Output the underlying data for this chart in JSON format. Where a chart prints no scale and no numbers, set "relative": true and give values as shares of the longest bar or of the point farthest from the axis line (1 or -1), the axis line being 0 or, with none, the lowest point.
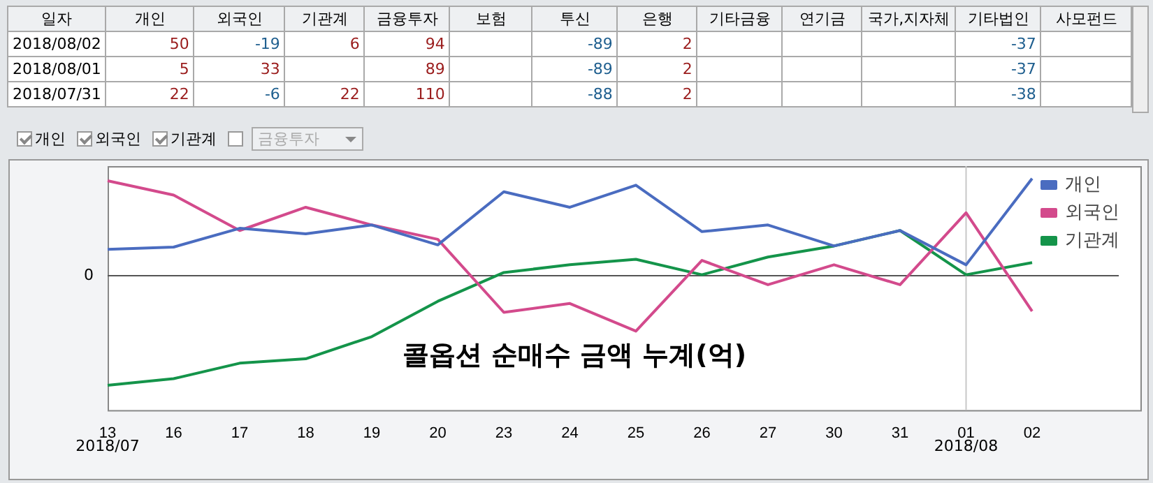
{
  "chart_data": [
    {
      "type": "other",
      "categories": [
        "일자",
        "개인",
        "외국인",
        "기관계",
        "금융투자",
        "보험",
        "투신",
        "은행",
        "기타금융",
        "연기금",
        "국가,지자체",
        "기타법인",
        "사모펀드"
      ],
      "cell_labels": [
        [
          "2018/08/02",
          "50",
          "-19",
          "6",
          "94",
          null,
          "-89",
          "2",
          null,
          null,
          null,
          "-37",
          null
        ],
        [
          "2018/08/01",
          "5",
          "33",
          null,
          "89",
          null,
          "-89",
          "2",
          null,
          null,
          null,
          "-37",
          null
        ],
        [
          "2018/07/31",
          "22",
          "-6",
          "22",
          "110",
          null,
          "-88",
          "2",
          null,
          null,
          null,
          "-38",
          null
        ]
      ],
      "annotations": [
        "개인",
        "외국인",
        "기관계",
        "금융투자"
      ]
    },
    {
      "type": "line",
      "title": "콜옵션 순매수 금액 누계(억)",
      "relative": true,
      "marker": "none",
      "legend": "top right",
      "categories": [
        "13",
        "16",
        "17",
        "18",
        "19",
        "20",
        "23",
        "24",
        "25",
        "26",
        "27",
        "30",
        "31",
        "01",
        "02"
      ],
      "series": [
        {
          "name": "개인",
          "color": "#4a6cc0",
          "values": [
            0.23,
            0.25,
            0.42,
            0.37,
            0.45,
            0.27,
            0.75,
            0.61,
            0.81,
            0.39,
            0.45,
            0.26,
            0.4,
            0.09,
            0.87
          ]
        },
        {
          "name": "외국인",
          "color": "#d34a8c",
          "values": [
            0.85,
            0.72,
            0.4,
            0.61,
            0.45,
            0.32,
            -0.34,
            -0.26,
            -0.51,
            0.13,
            -0.09,
            0.09,
            -0.09,
            0.56,
            -0.33
          ]
        },
        {
          "name": "기관계",
          "color": "#14944a",
          "values": [
            -1,
            -0.94,
            -0.8,
            -0.76,
            -0.56,
            -0.24,
            0.02,
            0.09,
            0.14,
            0,
            0.16,
            0.26,
            0.4,
            0,
            0.11
          ]
        }
      ],
      "ref_lines": [
        {
          "axis": "y",
          "value": 0,
          "label": "0",
          "color": "#555555"
        },
        {
          "axis": "x",
          "value": "01",
          "label": "2018/08",
          "color": "#c8c8c8"
        }
      ],
      "annotations": [
        "2018/07"
      ]
    }
  ]
}
